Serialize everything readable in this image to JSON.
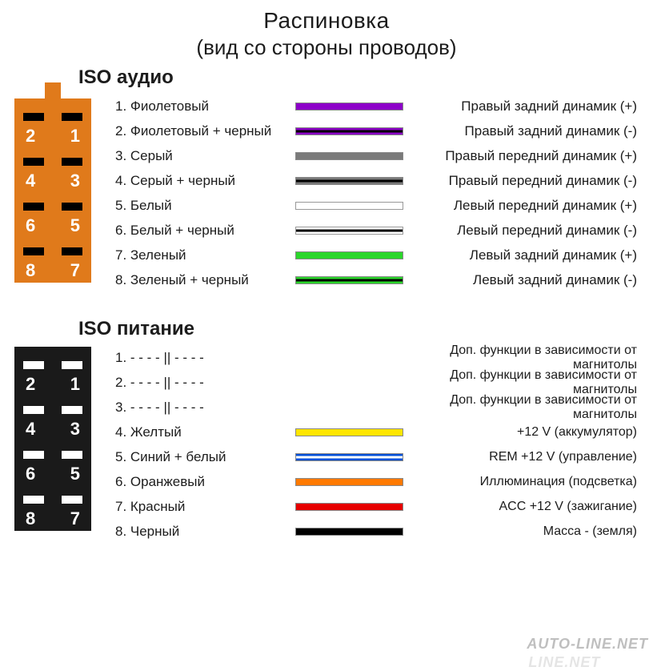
{
  "title": "Распиновка",
  "subtitle": "(вид со стороны проводов)",
  "watermark": "AUTO-LINE.NET",
  "audio": {
    "label": "ISO аудио",
    "connector": {
      "body_color": "#e07a1b",
      "pin_color": "#000000",
      "num_color": "#ffffff",
      "numbers": [
        "2",
        "1",
        "4",
        "3",
        "6",
        "5",
        "8",
        "7"
      ]
    },
    "rows": [
      {
        "n": "1.",
        "name": "Фиолетовый",
        "color": "#8c00c8",
        "stripe": null,
        "func": "Правый задний динамик (+)"
      },
      {
        "n": "2.",
        "name": "Фиолетовый + черный",
        "color": "#8c00c8",
        "stripe": "#000000",
        "func": "Правый задний динамик (-)"
      },
      {
        "n": "3.",
        "name": "Серый",
        "color": "#7a7a7a",
        "stripe": null,
        "func": "Правый передний динамик (+)"
      },
      {
        "n": "4.",
        "name": "Серый + черный",
        "color": "#7a7a7a",
        "stripe": "#000000",
        "func": "Правый передний динамик (-)"
      },
      {
        "n": "5.",
        "name": "Белый",
        "color": "#ffffff",
        "stripe": null,
        "func": "Левый передний динамик (+)"
      },
      {
        "n": "6.",
        "name": "Белый + черный",
        "color": "#ffffff",
        "stripe": "#000000",
        "func": "Левый передний динамик (-)"
      },
      {
        "n": "7.",
        "name": "Зеленый",
        "color": "#2bd62b",
        "stripe": null,
        "func": "Левый задний динамик (+)"
      },
      {
        "n": "8.",
        "name": "Зеленый + черный",
        "color": "#2bd62b",
        "stripe": "#000000",
        "func": "Левый задний динамик (-)"
      }
    ]
  },
  "power": {
    "label": "ISO питание",
    "connector": {
      "body_color": "#1a1a1a",
      "pin_color": "#ffffff",
      "num_color": "#ffffff",
      "numbers": [
        "2",
        "1",
        "4",
        "3",
        "6",
        "5",
        "8",
        "7"
      ]
    },
    "rows": [
      {
        "n": "1.",
        "name": "- - - - || - - - -",
        "color": null,
        "stripe": null,
        "func": "Доп. функции в зависимости от магнитолы"
      },
      {
        "n": "2.",
        "name": "- - - - || - - - -",
        "color": null,
        "stripe": null,
        "func": "Доп. функции в зависимости от магнитолы"
      },
      {
        "n": "3.",
        "name": "- - - - || - - - -",
        "color": null,
        "stripe": null,
        "func": "Доп. функции в зависимости от магнитолы"
      },
      {
        "n": "4.",
        "name": "Желтый",
        "color": "#ffe600",
        "stripe": null,
        "func": "+12 V (аккумулятор)"
      },
      {
        "n": "5.",
        "name": "Синий + белый",
        "color": "#0050d8",
        "stripe": "#ffffff",
        "func": "REM +12 V (управление)"
      },
      {
        "n": "6.",
        "name": "Оранжевый",
        "color": "#ff7a00",
        "stripe": null,
        "func": "Иллюминация (подсветка)"
      },
      {
        "n": "7.",
        "name": "Красный",
        "color": "#e60000",
        "stripe": null,
        "func": "ACC +12 V (зажигание)"
      },
      {
        "n": "8.",
        "name": "Черный",
        "color": "#000000",
        "stripe": null,
        "func": "Масса - (земля)"
      }
    ]
  }
}
